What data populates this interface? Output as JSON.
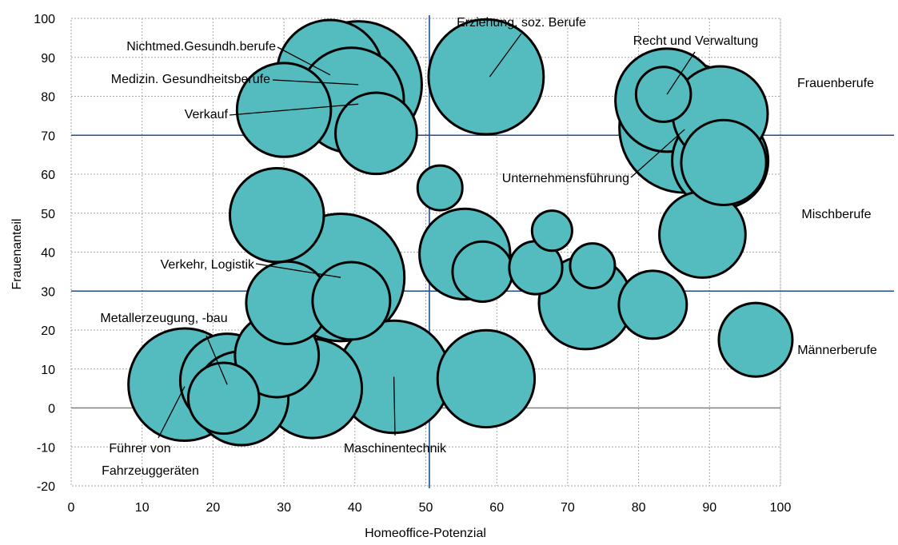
{
  "chart_data": {
    "type": "scatter",
    "title": "",
    "xlabel": "Homeoffice-Potenzial",
    "ylabel": "Frauenanteil",
    "xlim": [
      0,
      100
    ],
    "ylim": [
      -20,
      100
    ],
    "xticks": [
      0,
      10,
      20,
      30,
      40,
      50,
      60,
      70,
      80,
      90,
      100
    ],
    "yticks": [
      -20,
      -10,
      0,
      10,
      20,
      30,
      40,
      50,
      60,
      70,
      80,
      90,
      100
    ],
    "grid": true,
    "bubble_color": "#54BCBF",
    "edge_color": "#000000",
    "reference_lines": [
      {
        "axis": "y",
        "value": 70,
        "color": "#1F4E8C"
      },
      {
        "axis": "y",
        "value": 30,
        "color": "#1F4E8C"
      },
      {
        "axis": "x",
        "value": 50.5,
        "color": "#1F4E8C"
      },
      {
        "axis": "y",
        "value": 0,
        "color": "#808080"
      }
    ],
    "zones": [
      "Frauenberufe",
      "Mischberufe",
      "Männerberufe"
    ],
    "points": [
      {
        "x": 40.5,
        "y": 83,
        "size": 8
      },
      {
        "x": 39.5,
        "y": 79,
        "size": 5.5
      },
      {
        "x": 43,
        "y": 70.5,
        "size": 3.3
      },
      {
        "x": 30,
        "y": 76.5,
        "size": 4.4
      },
      {
        "x": 36.5,
        "y": 86,
        "size": 5.6
      },
      {
        "x": 58.5,
        "y": 85,
        "size": 6.6
      },
      {
        "x": 86.5,
        "y": 72,
        "size": 8.5
      },
      {
        "x": 91.5,
        "y": 75.5,
        "size": 4.5
      },
      {
        "x": 84,
        "y": 79,
        "size": 5.3
      },
      {
        "x": 83.5,
        "y": 80.5,
        "size": 1.5
      },
      {
        "x": 91.5,
        "y": 63.5,
        "size": 4.6
      },
      {
        "x": 92,
        "y": 63,
        "size": 3.6
      },
      {
        "x": 52,
        "y": 56.5,
        "size": 1
      },
      {
        "x": 29,
        "y": 49.5,
        "size": 4.4
      },
      {
        "x": 89,
        "y": 44.5,
        "size": 3.7
      },
      {
        "x": 55.5,
        "y": 39.5,
        "size": 4.1
      },
      {
        "x": 58,
        "y": 35,
        "size": 1.8
      },
      {
        "x": 65.5,
        "y": 36,
        "size": 1.4
      },
      {
        "x": 67.8,
        "y": 45.5,
        "size": 0.8
      },
      {
        "x": 73.5,
        "y": 36.5,
        "size": 1
      },
      {
        "x": 38,
        "y": 33.5,
        "size": 8.1
      },
      {
        "x": 30.5,
        "y": 27,
        "size": 3.4
      },
      {
        "x": 39.5,
        "y": 27.5,
        "size": 3
      },
      {
        "x": 72.5,
        "y": 27,
        "size": 4.3
      },
      {
        "x": 82,
        "y": 26.5,
        "size": 2.3
      },
      {
        "x": 96.5,
        "y": 17.5,
        "size": 2.7
      },
      {
        "x": 29,
        "y": 13.5,
        "size": 3.5
      },
      {
        "x": 22,
        "y": 7,
        "size": 4.4
      },
      {
        "x": 16,
        "y": 6,
        "size": 6.3
      },
      {
        "x": 21.5,
        "y": 2.5,
        "size": 2.5
      },
      {
        "x": 24,
        "y": 2.5,
        "size": 4.4
      },
      {
        "x": 34,
        "y": 5,
        "size": 4.9
      },
      {
        "x": 45.5,
        "y": 8,
        "size": 6.3
      },
      {
        "x": 58.5,
        "y": 7.5,
        "size": 4.7
      }
    ],
    "annotations": [
      {
        "text": "Nichtmed.Gesundh.berufe",
        "x": 36.5,
        "y": 85.5
      },
      {
        "text": "Medizin. Gesundheitsberufe",
        "x": 40.5,
        "y": 83
      },
      {
        "text": "Verkauf",
        "x": 40.5,
        "y": 78
      },
      {
        "text": "Erziehung, soz. Berufe",
        "x": 59,
        "y": 85
      },
      {
        "text": "Recht und Verwaltung",
        "x": 84,
        "y": 80.5
      },
      {
        "text": "Unternehmensführung",
        "x": 86.5,
        "y": 71.5
      },
      {
        "text": "Verkehr, Logistik",
        "x": 38,
        "y": 33.5
      },
      {
        "text": "Metallerzeugung, -bau",
        "x": 22,
        "y": 6
      },
      {
        "text": "Führer von",
        "x": 16,
        "y": 5.5
      },
      {
        "text": "Fahrzeuggeräten",
        "x": 16,
        "y": 5.5
      },
      {
        "text": "Maschinentechnik",
        "x": 45.5,
        "y": 8
      }
    ]
  }
}
